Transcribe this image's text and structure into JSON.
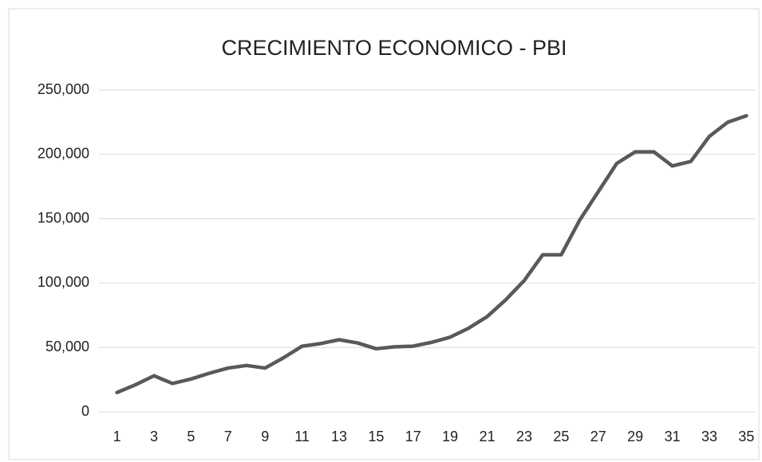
{
  "chart_data": {
    "type": "line",
    "title": "CRECIMIENTO ECONOMICO - PBI",
    "categories": [
      1,
      null,
      3,
      null,
      5,
      null,
      7,
      null,
      9,
      null,
      11,
      null,
      13,
      null,
      15,
      null,
      17,
      null,
      19,
      null,
      21,
      null,
      23,
      null,
      25,
      null,
      27,
      null,
      29,
      null,
      31,
      null,
      33,
      null,
      35
    ],
    "values": [
      15000,
      21000,
      28000,
      22000,
      25500,
      30000,
      34000,
      36000,
      34000,
      42000,
      51000,
      53000,
      56000,
      53500,
      49000,
      50500,
      51000,
      54000,
      58000,
      65000,
      74000,
      87000,
      102000,
      122000,
      122000,
      149000,
      171000,
      193000,
      202000,
      202000,
      191000,
      194500,
      214000,
      225000,
      230000
    ],
    "color": "#595959",
    "ylim": [
      0,
      250000
    ],
    "yticks": [
      0,
      {
        "value": 50000,
        "label": "50,000"
      },
      {
        "value": 100000,
        "label": "100,000"
      },
      {
        "value": 150000,
        "label": "150,000"
      },
      {
        "value": 200000,
        "label": "200,000"
      },
      {
        "value": 250000,
        "label": "250,000"
      }
    ],
    "grid": true
  }
}
